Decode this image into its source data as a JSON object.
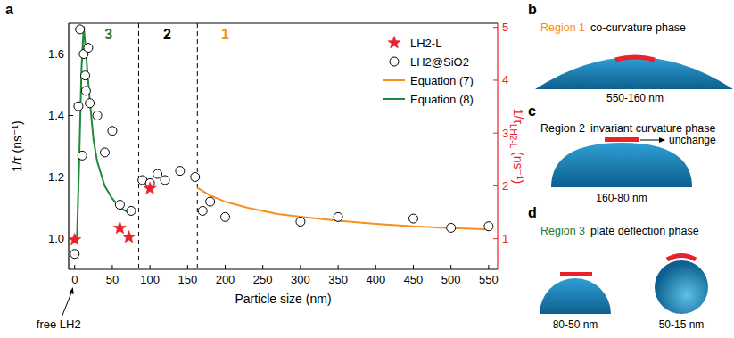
{
  "chart_data": {
    "type": "scatter",
    "panel": "a",
    "x_label": "Particle size (nm)",
    "y_label": "1/τ (ns⁻¹)",
    "y2_label": [
      "1/τ",
      "LH2-L",
      " (ns⁻¹)"
    ],
    "xlim": [
      -8,
      562
    ],
    "xticks": [
      0,
      50,
      100,
      150,
      200,
      250,
      300,
      350,
      400,
      450,
      500,
      550
    ],
    "ylim": [
      0.9,
      1.7
    ],
    "yticks": [
      {
        "value": 1,
        "label": "1.0"
      },
      1.2,
      1.4,
      1.6
    ],
    "y2lim": [
      0.42,
      5.08
    ],
    "y2ticks": [
      1,
      2,
      3,
      4,
      5
    ],
    "legend": "upper right",
    "region_bounds": [
      85,
      163
    ],
    "annotations": [
      {
        "text": "3",
        "x": 45,
        "y": 1.665,
        "color": "#1f7a35"
      },
      {
        "text": "2",
        "x": 123,
        "y": 1.665,
        "color": "#000000"
      },
      {
        "text": "1",
        "x": 200,
        "y": 1.665,
        "color": "#f5901e"
      },
      {
        "text": "free LH2",
        "x": 0
      }
    ],
    "series": [
      {
        "name": "LH2-L",
        "type": "scatter",
        "marker": "star",
        "color": "#e8222a",
        "axis": "y2",
        "x": [
          0,
          60,
          72,
          100
        ],
        "values": [
          0.98,
          1.2,
          1.03,
          1.95
        ]
      },
      {
        "name": "LH2@SiO2",
        "type": "scatter",
        "marker": "open-circle",
        "color": "#000000",
        "x": [
          0,
          5,
          7,
          10,
          12,
          14,
          15,
          18,
          20,
          30,
          40,
          50,
          60,
          75,
          90,
          100,
          110,
          120,
          140,
          160,
          170,
          180,
          200,
          300,
          350,
          450,
          500,
          550
        ],
        "values": [
          0.95,
          1.43,
          1.68,
          1.27,
          1.6,
          1.53,
          1.48,
          1.62,
          1.44,
          1.4,
          1.28,
          1.35,
          1.11,
          1.09,
          1.19,
          1.18,
          1.21,
          1.19,
          1.22,
          1.2,
          1.09,
          1.12,
          1.07,
          1.055,
          1.07,
          1.065,
          1.035,
          1.04
        ]
      },
      {
        "name": "Equation (7)",
        "type": "line",
        "color": "#f5901e",
        "x": [
          163,
          180,
          200,
          230,
          270,
          310,
          350,
          400,
          450,
          500,
          550
        ],
        "values": [
          1.165,
          1.14,
          1.12,
          1.1,
          1.08,
          1.068,
          1.058,
          1.048,
          1.04,
          1.034,
          1.03
        ]
      },
      {
        "name": "Equation (8)",
        "type": "line",
        "color": "#1f8a3a",
        "x": [
          3,
          6,
          9,
          12,
          15,
          20,
          25,
          30,
          40,
          50,
          60,
          75
        ],
        "values": [
          1.0,
          1.25,
          1.55,
          1.69,
          1.6,
          1.45,
          1.32,
          1.25,
          1.17,
          1.13,
          1.1,
          1.08
        ]
      }
    ]
  },
  "diagrams": [
    {
      "letter": "b",
      "region": "Region 1",
      "phase": "co-curvature phase",
      "color": "#f5901e",
      "sizes": [
        "550-160 nm"
      ]
    },
    {
      "letter": "c",
      "region": "Region 2",
      "phase": "invariant curvature phase",
      "color": "#000000",
      "sizes": [
        "160-80 nm"
      ],
      "note": "unchange"
    },
    {
      "letter": "d",
      "region": "Region 3",
      "phase": "plate deflection phase",
      "color": "#1f7a35",
      "sizes": [
        "80-50 nm",
        "50-15 nm"
      ]
    }
  ]
}
